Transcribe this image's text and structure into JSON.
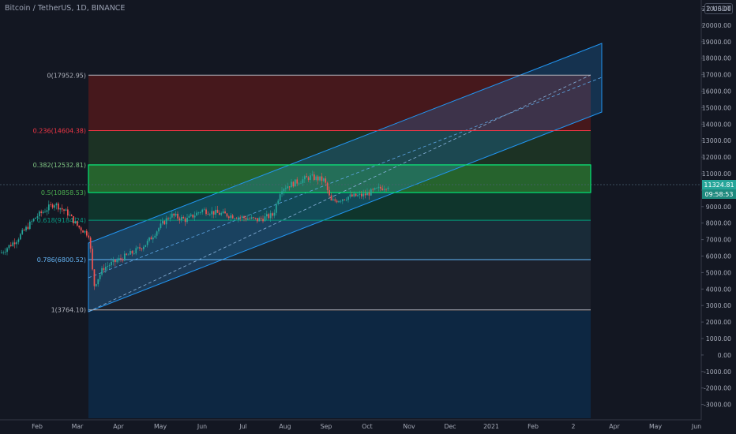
{
  "header": {
    "symbol": "Bitcoin / TetherUS, 1D, BINANCE",
    "unit_badge": "2 USDT"
  },
  "price_axis": {
    "ticks": [
      "21000.00",
      "20000.00",
      "19000.00",
      "18000.00",
      "17000.00",
      "16000.00",
      "15000.00",
      "14000.00",
      "13000.00",
      "12000.00",
      "11000.00",
      "10000.00",
      "9000.00",
      "8000.00",
      "7000.00",
      "6000.00",
      "5000.00",
      "4000.00",
      "3000.00",
      "2000.00",
      "1000.00",
      "0.00",
      "-1000.00",
      "-2000.00",
      "-3000.00"
    ],
    "last_price": "11324.81",
    "countdown": "09:58:53"
  },
  "time_axis": {
    "ticks": [
      "Feb",
      "Mar",
      "Apr",
      "May",
      "Jun",
      "Jul",
      "Aug",
      "Sep",
      "Oct",
      "Nov",
      "Dec",
      "2021",
      "Feb",
      "2",
      "Apr",
      "May",
      "Jun"
    ]
  },
  "fib_levels": [
    {
      "label": "0(17952.95)",
      "price": 17952.95,
      "color": "#b2b5be"
    },
    {
      "label": "0.236(14604.38)",
      "price": 14604.38,
      "color": "#f23645"
    },
    {
      "label": "0.382(12532.81)",
      "price": 12532.81,
      "color": "#81c784"
    },
    {
      "label": "0.5(10858.53)",
      "price": 10858.53,
      "color": "#4caf50"
    },
    {
      "label": "0.618(9184.24)",
      "price": 9184.24,
      "color": "#089981"
    },
    {
      "label": "0.786(6800.52)",
      "price": 6800.52,
      "color": "#64b5f6"
    },
    {
      "label": "1(3764.10)",
      "price": 3764.1,
      "color": "#b2b5be"
    }
  ],
  "colors": {
    "background": "#131722",
    "up": "#26a69a",
    "down": "#ef5350",
    "channel": "#2196f3",
    "price_badge": "#26a69a"
  }
}
